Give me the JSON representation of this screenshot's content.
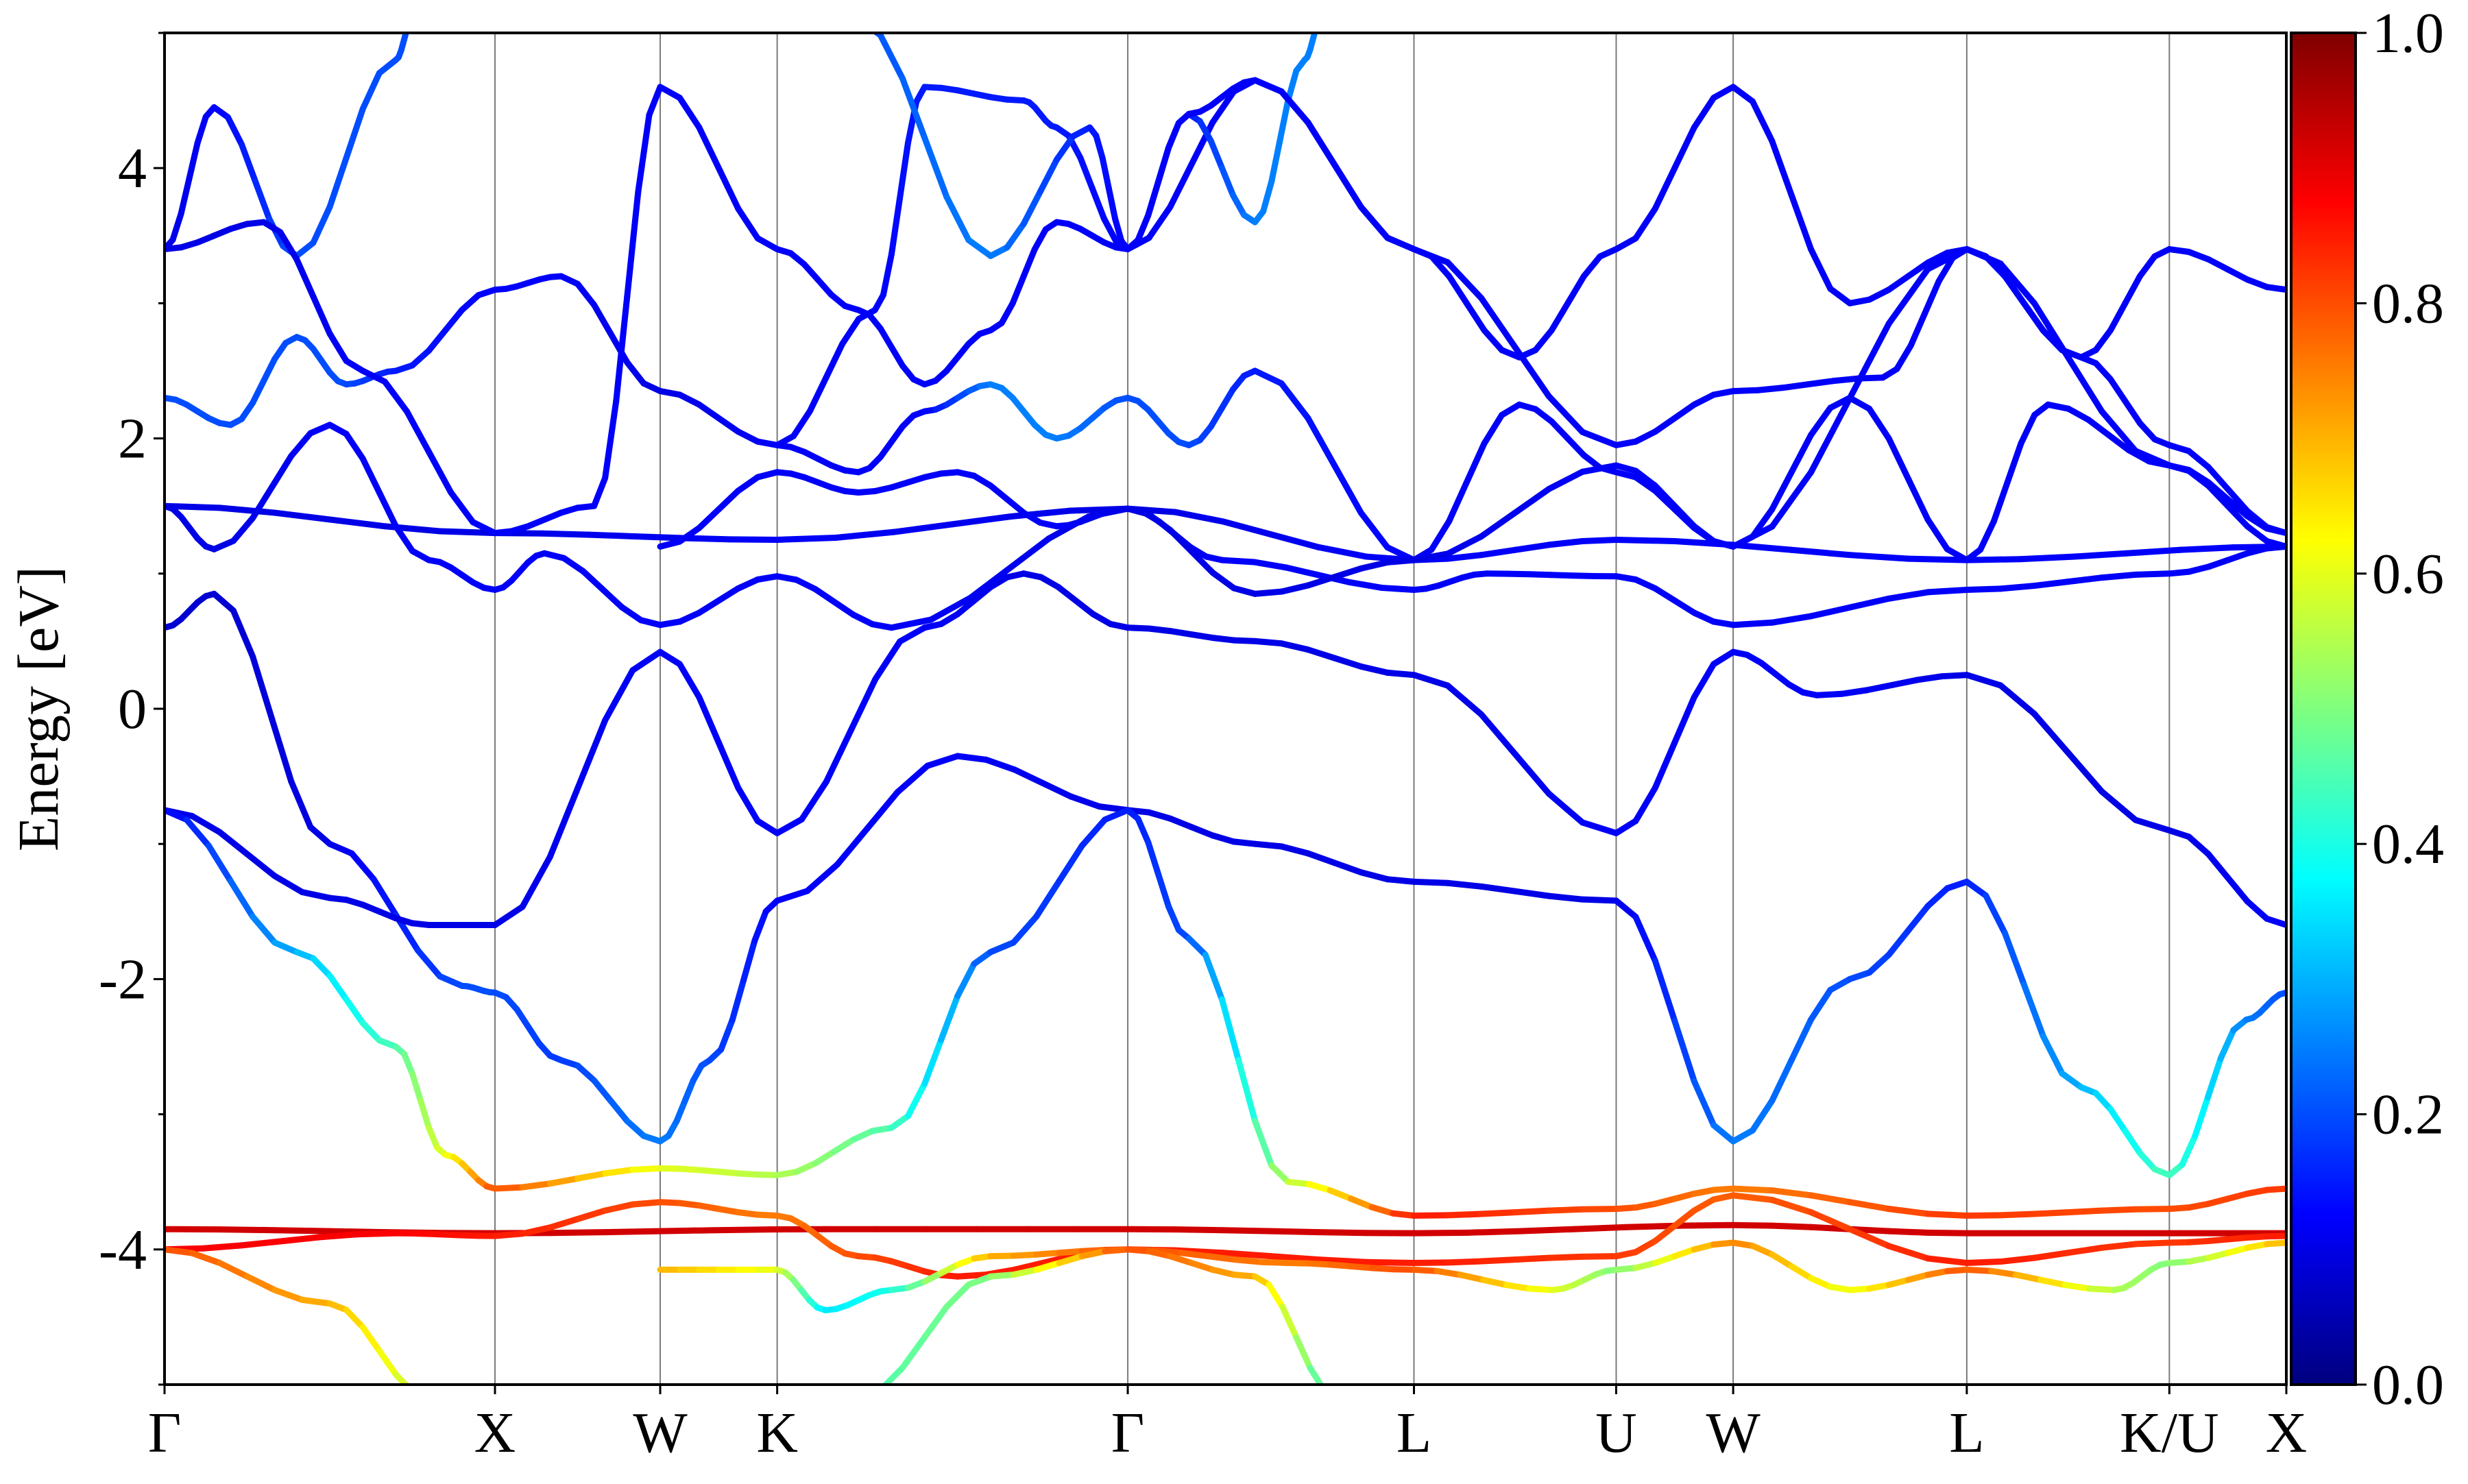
{
  "chart_data": {
    "type": "line",
    "title": "",
    "xlabel": "",
    "ylabel": "Energy [eV]",
    "ylim": [
      -5,
      5
    ],
    "x_ticks": [
      {
        "label": "Γ",
        "x": 0.0
      },
      {
        "label": "X",
        "x": 1.0
      },
      {
        "label": "W",
        "x": 1.5
      },
      {
        "label": "K",
        "x": 1.854
      },
      {
        "label": "Γ",
        "x": 2.915
      },
      {
        "label": "L",
        "x": 3.781
      },
      {
        "label": "U",
        "x": 4.393
      },
      {
        "label": "W",
        "x": 4.747
      },
      {
        "label": "L",
        "x": 5.454
      },
      {
        "label": "K/U",
        "x": 6.067
      },
      {
        "label": "X",
        "x": 6.421
      }
    ],
    "y_ticks": [
      {
        "label": "4",
        "value": 4
      },
      {
        "label": "2",
        "value": 2
      },
      {
        "label": "0",
        "value": 0
      },
      {
        "label": "-2",
        "value": -2
      },
      {
        "label": "-4",
        "value": -4
      }
    ],
    "colorbar": {
      "range": [
        0.0,
        1.0
      ],
      "ticks": [
        "0.0",
        "0.2",
        "0.4",
        "0.6",
        "0.8",
        "1.0"
      ],
      "colormap": "jet"
    },
    "series": [
      {
        "points": [
          [
            0.0,
            0.6,
            0.08
          ],
          [
            0.15,
            0.85,
            0.08
          ],
          [
            0.5,
            -1.0,
            0.1
          ],
          [
            0.9,
            -2.05,
            0.2
          ],
          [
            1.0,
            -2.1,
            0.2
          ],
          [
            1.2,
            -2.6,
            0.18
          ],
          [
            1.5,
            -3.2,
            0.25
          ],
          [
            1.65,
            -2.6,
            0.2
          ],
          [
            1.854,
            -1.42,
            0.12
          ],
          [
            2.4,
            -0.35,
            0.12
          ],
          [
            2.915,
            -0.75,
            0.1
          ],
          [
            3.3,
            -1.0,
            0.1
          ],
          [
            3.781,
            -1.28,
            0.1
          ],
          [
            4.393,
            -1.42,
            0.1
          ],
          [
            4.747,
            -3.2,
            0.25
          ],
          [
            5.1,
            -2.0,
            0.2
          ],
          [
            5.454,
            -1.28,
            0.15
          ],
          [
            5.8,
            -2.8,
            0.3
          ],
          [
            6.067,
            -3.45,
            0.45
          ],
          [
            6.3,
            -2.3,
            0.25
          ],
          [
            6.421,
            -2.1,
            0.2
          ]
        ]
      },
      {
        "points": [
          [
            0.0,
            -0.75,
            0.1
          ],
          [
            0.5,
            -1.4,
            0.1
          ],
          [
            0.8,
            -1.6,
            0.1
          ],
          [
            1.0,
            -1.6,
            0.1
          ],
          [
            1.5,
            0.42,
            0.12
          ],
          [
            1.854,
            -0.92,
            0.12
          ],
          [
            2.3,
            0.6,
            0.12
          ],
          [
            2.6,
            1.0,
            0.1
          ],
          [
            2.915,
            0.6,
            0.1
          ],
          [
            3.3,
            0.5,
            0.1
          ],
          [
            3.781,
            0.25,
            0.1
          ],
          [
            4.393,
            -0.92,
            0.12
          ],
          [
            4.747,
            0.42,
            0.12
          ],
          [
            5.0,
            0.1,
            0.12
          ],
          [
            5.454,
            0.25,
            0.1
          ],
          [
            6.067,
            -0.9,
            0.1
          ],
          [
            6.421,
            -1.6,
            0.12
          ]
        ]
      },
      {
        "points": [
          [
            0.0,
            -0.75,
            0.12
          ],
          [
            0.4,
            -1.8,
            0.3
          ],
          [
            0.7,
            -2.5,
            0.45
          ],
          [
            0.85,
            -3.3,
            0.6
          ],
          [
            1.0,
            -3.55,
            0.8
          ],
          [
            1.5,
            -3.4,
            0.6
          ],
          [
            1.854,
            -3.45,
            0.55
          ],
          [
            2.2,
            -3.1,
            0.45
          ],
          [
            2.5,
            -1.8,
            0.2
          ],
          [
            2.915,
            -0.75,
            0.15
          ],
          [
            3.1,
            -1.7,
            0.2
          ],
          [
            3.4,
            -3.5,
            0.55
          ],
          [
            3.781,
            -3.75,
            0.85
          ],
          [
            4.393,
            -3.7,
            0.8
          ],
          [
            4.747,
            -3.55,
            0.75
          ],
          [
            5.454,
            -3.75,
            0.82
          ],
          [
            6.067,
            -3.7,
            0.8
          ],
          [
            6.421,
            -3.55,
            0.82
          ]
        ]
      },
      {
        "points": [
          [
            0.0,
            -3.85,
            0.92
          ],
          [
            1.0,
            -3.88,
            0.92
          ],
          [
            2.0,
            -3.85,
            0.92
          ],
          [
            2.915,
            -3.85,
            0.92
          ],
          [
            3.781,
            -3.88,
            0.92
          ],
          [
            4.747,
            -3.82,
            0.92
          ],
          [
            5.454,
            -3.88,
            0.92
          ],
          [
            6.421,
            -3.88,
            0.92
          ]
        ]
      },
      {
        "points": [
          [
            0.0,
            -4.0,
            0.88
          ],
          [
            0.7,
            -3.88,
            0.88
          ],
          [
            1.0,
            -3.9,
            0.85
          ],
          [
            1.5,
            -3.65,
            0.8
          ],
          [
            1.854,
            -3.75,
            0.75
          ],
          [
            2.1,
            -4.05,
            0.8
          ],
          [
            2.4,
            -4.2,
            0.85
          ],
          [
            2.915,
            -4.0,
            0.85
          ],
          [
            3.781,
            -4.1,
            0.85
          ],
          [
            4.393,
            -4.05,
            0.82
          ],
          [
            4.747,
            -3.6,
            0.78
          ],
          [
            5.454,
            -4.1,
            0.85
          ],
          [
            6.067,
            -3.95,
            0.82
          ],
          [
            6.421,
            -3.9,
            0.85
          ]
        ]
      },
      {
        "points": [
          [
            0.0,
            -4.0,
            0.8
          ],
          [
            0.5,
            -4.4,
            0.7
          ],
          [
            0.8,
            -5.1,
            0.55
          ]
        ]
      },
      {
        "points": [
          [
            1.5,
            -4.15,
            0.7
          ],
          [
            1.854,
            -4.15,
            0.6
          ],
          [
            2.0,
            -4.45,
            0.35
          ],
          [
            2.2,
            -4.3,
            0.4
          ],
          [
            2.5,
            -4.05,
            0.7
          ],
          [
            2.915,
            -4.0,
            0.8
          ],
          [
            3.4,
            -4.1,
            0.75
          ],
          [
            3.781,
            -4.15,
            0.8
          ],
          [
            4.2,
            -4.3,
            0.6
          ],
          [
            4.393,
            -4.15,
            0.5
          ],
          [
            4.747,
            -3.95,
            0.75
          ],
          [
            5.1,
            -4.3,
            0.6
          ],
          [
            5.454,
            -4.15,
            0.8
          ],
          [
            5.9,
            -4.3,
            0.55
          ],
          [
            6.067,
            -4.1,
            0.5
          ],
          [
            6.421,
            -3.95,
            0.7
          ]
        ]
      },
      {
        "points": [
          [
            2.1,
            -5.1,
            0.45
          ],
          [
            2.5,
            -4.2,
            0.5
          ],
          [
            2.915,
            -4.0,
            0.8
          ],
          [
            3.3,
            -4.2,
            0.7
          ],
          [
            3.55,
            -5.1,
            0.4
          ]
        ]
      },
      {
        "points": [
          [
            0.0,
            1.5,
            0.1
          ],
          [
            1.0,
            1.3,
            0.1
          ],
          [
            1.854,
            1.25,
            0.12
          ],
          [
            2.915,
            1.48,
            0.1
          ],
          [
            3.781,
            1.1,
            0.12
          ],
          [
            4.393,
            1.25,
            0.12
          ],
          [
            5.454,
            1.1,
            0.12
          ],
          [
            6.421,
            1.2,
            0.12
          ]
        ]
      },
      {
        "points": [
          [
            0.0,
            1.5,
            0.1
          ],
          [
            0.15,
            1.18,
            0.1
          ],
          [
            0.5,
            2.1,
            0.12
          ],
          [
            0.8,
            1.1,
            0.12
          ],
          [
            1.0,
            0.88,
            0.12
          ],
          [
            1.15,
            1.15,
            0.12
          ],
          [
            1.5,
            0.62,
            0.12
          ],
          [
            1.854,
            0.98,
            0.12
          ],
          [
            2.2,
            0.6,
            0.12
          ],
          [
            2.915,
            1.48,
            0.1
          ],
          [
            3.2,
            1.1,
            0.12
          ],
          [
            3.781,
            0.88,
            0.12
          ],
          [
            4.0,
            1.0,
            0.12
          ],
          [
            4.393,
            0.98,
            0.12
          ],
          [
            4.747,
            0.62,
            0.12
          ],
          [
            5.454,
            0.88,
            0.12
          ],
          [
            6.067,
            1.0,
            0.12
          ],
          [
            6.421,
            1.2,
            0.12
          ]
        ]
      },
      {
        "points": [
          [
            0.0,
            2.3,
            0.2
          ],
          [
            0.2,
            2.1,
            0.2
          ],
          [
            0.4,
            2.75,
            0.2
          ],
          [
            0.55,
            2.4,
            0.2
          ],
          [
            0.7,
            2.5,
            0.15
          ],
          [
            1.0,
            3.1,
            0.12
          ],
          [
            1.2,
            3.2,
            0.12
          ],
          [
            1.5,
            2.35,
            0.1
          ],
          [
            1.854,
            1.95,
            0.12
          ],
          [
            2.1,
            1.75,
            0.12
          ],
          [
            2.3,
            2.2,
            0.12
          ],
          [
            2.5,
            2.4,
            0.25
          ],
          [
            2.7,
            2.0,
            0.25
          ],
          [
            2.915,
            2.3,
            0.2
          ],
          [
            3.1,
            1.95,
            0.2
          ],
          [
            3.3,
            2.5,
            0.15
          ],
          [
            3.781,
            1.1,
            0.12
          ],
          [
            4.1,
            2.25,
            0.12
          ],
          [
            4.393,
            1.75,
            0.12
          ],
          [
            4.747,
            1.2,
            0.12
          ],
          [
            5.1,
            2.3,
            0.12
          ],
          [
            5.454,
            1.1,
            0.12
          ],
          [
            5.7,
            2.25,
            0.12
          ],
          [
            6.067,
            1.8,
            0.12
          ],
          [
            6.421,
            1.2,
            0.12
          ]
        ]
      },
      {
        "points": [
          [
            0.0,
            3.4,
            0.1
          ],
          [
            0.15,
            4.45,
            0.12
          ],
          [
            0.4,
            3.35,
            0.2
          ],
          [
            0.7,
            4.8,
            0.2
          ],
          [
            0.75,
            5.1,
            0.2
          ]
        ]
      },
      {
        "points": [
          [
            0.0,
            3.4,
            0.1
          ],
          [
            0.3,
            3.6,
            0.1
          ],
          [
            0.6,
            2.5,
            0.12
          ],
          [
            1.0,
            1.3,
            0.12
          ],
          [
            1.3,
            1.5,
            0.12
          ],
          [
            1.5,
            4.6,
            0.12
          ],
          [
            1.854,
            3.4,
            0.12
          ],
          [
            2.1,
            2.95,
            0.12
          ],
          [
            2.3,
            2.4,
            0.12
          ],
          [
            2.5,
            2.8,
            0.12
          ],
          [
            2.7,
            3.6,
            0.12
          ],
          [
            2.915,
            3.4,
            0.12
          ],
          [
            3.3,
            4.65,
            0.12
          ],
          [
            3.781,
            3.4,
            0.12
          ],
          [
            4.1,
            2.6,
            0.12
          ],
          [
            4.393,
            3.4,
            0.12
          ],
          [
            4.747,
            4.6,
            0.12
          ],
          [
            5.1,
            3.0,
            0.12
          ],
          [
            5.454,
            3.4,
            0.12
          ],
          [
            5.8,
            2.6,
            0.12
          ],
          [
            6.067,
            3.4,
            0.12
          ],
          [
            6.421,
            3.1,
            0.12
          ]
        ]
      },
      {
        "points": [
          [
            1.5,
            1.2,
            0.12
          ],
          [
            1.854,
            1.75,
            0.12
          ],
          [
            2.1,
            1.6,
            0.12
          ],
          [
            2.4,
            1.75,
            0.12
          ],
          [
            2.7,
            1.35,
            0.12
          ],
          [
            2.915,
            1.48,
            0.1
          ],
          [
            3.3,
            0.85,
            0.1
          ],
          [
            3.781,
            1.1,
            0.1
          ],
          [
            4.393,
            1.8,
            0.12
          ],
          [
            4.747,
            1.2,
            0.12
          ],
          [
            5.454,
            3.4,
            0.12
          ],
          [
            5.8,
            2.6,
            0.12
          ],
          [
            6.067,
            1.95,
            0.12
          ],
          [
            6.421,
            1.3,
            0.12
          ]
        ]
      },
      {
        "points": [
          [
            1.854,
            1.95,
            0.12
          ],
          [
            2.15,
            2.95,
            0.12
          ],
          [
            2.3,
            4.6,
            0.15
          ],
          [
            2.6,
            4.5,
            0.15
          ],
          [
            2.7,
            4.3,
            0.15
          ],
          [
            2.915,
            3.4,
            0.12
          ],
          [
            3.1,
            4.4,
            0.15
          ],
          [
            3.3,
            3.6,
            0.25
          ],
          [
            3.45,
            4.8,
            0.25
          ],
          [
            3.5,
            5.1,
            0.25
          ]
        ]
      },
      {
        "points": [
          [
            2.1,
            5.1,
            0.2
          ],
          [
            2.5,
            3.35,
            0.25
          ],
          [
            2.8,
            4.3,
            0.15
          ],
          [
            2.915,
            3.4,
            0.12
          ],
          [
            3.1,
            4.4,
            0.12
          ],
          [
            3.3,
            4.65,
            0.12
          ],
          [
            3.781,
            3.4,
            0.12
          ],
          [
            4.393,
            1.95,
            0.12
          ],
          [
            4.747,
            2.35,
            0.12
          ],
          [
            5.2,
            2.45,
            0.12
          ],
          [
            5.454,
            3.4,
            0.12
          ],
          [
            6.067,
            1.8,
            0.12
          ],
          [
            6.421,
            1.3,
            0.12
          ]
        ]
      }
    ]
  }
}
